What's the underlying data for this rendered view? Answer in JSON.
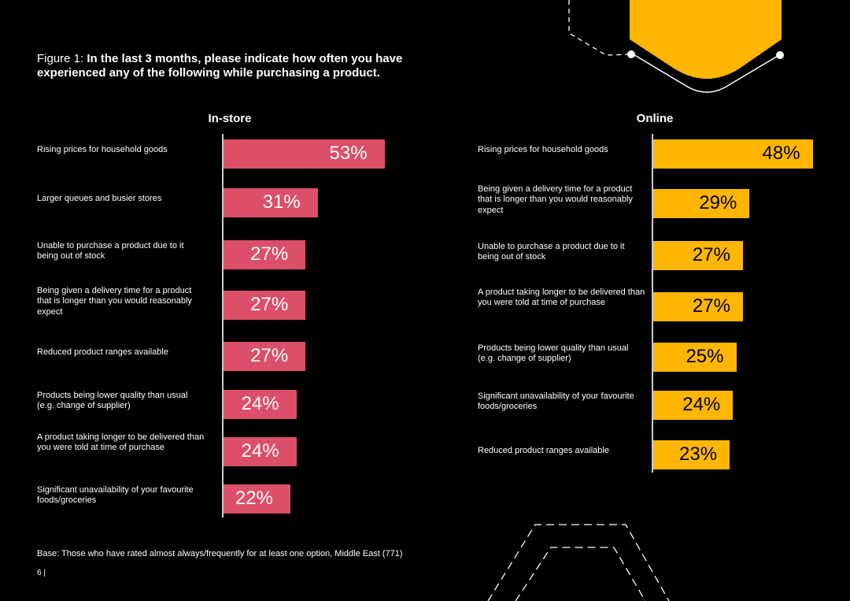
{
  "figure": {
    "prefix": "Figure 1: ",
    "question": "In the last 3 months, please indicate how often you have experienced any of the following while purchasing a product."
  },
  "chart_data": [
    {
      "type": "bar",
      "orientation": "horizontal",
      "title": "In-store",
      "unit": "%",
      "color": "#dc4f68",
      "categories": [
        "Rising prices for household goods",
        "Larger queues and busier stores",
        "Unable to purchase a product due to it being out of stock",
        "Being given a delivery time for a product that is longer than you would reasonably expect",
        "Reduced product ranges available",
        "Products being lower quality than usual (e.g. change of supplier)",
        "A product taking longer to be delivered than you were told at time of purchase",
        "Significant unavailability of your favourite foods/groceries"
      ],
      "values": [
        53,
        31,
        27,
        27,
        27,
        24,
        24,
        22
      ]
    },
    {
      "type": "bar",
      "orientation": "horizontal",
      "title": "Online",
      "unit": "%",
      "color": "#ffb600",
      "categories": [
        "Rising prices for household goods",
        "Being given a delivery time for a product that is longer than you would reasonably expect",
        "Unable to purchase a product due to it being out of stock",
        "A product taking longer to be delivered than you were told at time of purchase",
        "Products being lower quality than usual (e.g. change of supplier)",
        "Significant unavailability of your favourite foods/groceries",
        "Reduced product ranges available"
      ],
      "values": [
        48,
        29,
        27,
        27,
        25,
        24,
        23
      ]
    }
  ],
  "footer": {
    "base": "Base: Those who have rated almost always/frequently for at least one option, Middle East (771)",
    "page": "6 |"
  }
}
